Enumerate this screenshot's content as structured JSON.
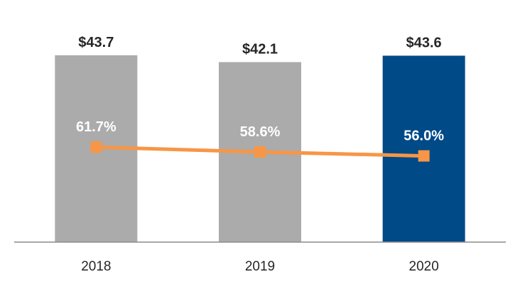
{
  "chart_data": {
    "type": "bar",
    "categories": [
      "2018",
      "2019",
      "2020"
    ],
    "series": [
      {
        "type": "bar",
        "values": [
          43.7,
          42.1,
          43.6
        ],
        "labels": [
          "$43.7",
          "$42.1",
          "$43.6"
        ],
        "colors": [
          "#ababab",
          "#ababab",
          "#004a87"
        ]
      },
      {
        "type": "line",
        "values": [
          61.7,
          58.6,
          56.0
        ],
        "labels": [
          "61.7%",
          "58.6%",
          "56.0%"
        ],
        "color": "#f79646"
      }
    ],
    "title": "",
    "xlabel": "",
    "ylabel": "",
    "bar_ylim": [
      0,
      45
    ],
    "line_ylim": [
      0,
      125
    ],
    "grid": false,
    "legend": "none"
  }
}
